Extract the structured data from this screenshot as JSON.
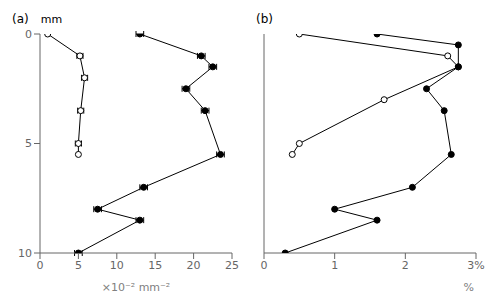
{
  "chart_data": [
    {
      "type": "line",
      "title": "(a)",
      "ylabel": "mm",
      "xlabel": "×10⁻² mm⁻²",
      "xlim": [
        0,
        25
      ],
      "xticks": [
        0,
        5,
        10,
        15,
        20,
        25
      ],
      "ylim": [
        10,
        0
      ],
      "yticks": [
        0,
        5,
        10
      ],
      "grid": false,
      "series": [
        {
          "marker": "circle_open",
          "color": "#000000",
          "line_style": "solid",
          "x": [
            1.0,
            5.2,
            5.8,
            5.3,
            5.0,
            5.0
          ],
          "y": [
            0.0,
            1.0,
            2.0,
            3.5,
            5.0,
            5.5
          ],
          "xerr": [
            0.0,
            0.4,
            0.4,
            0.4,
            0.4,
            0.0
          ]
        },
        {
          "marker": "circle",
          "color": "#000000",
          "line_style": "solid",
          "x": [
            13.0,
            21.0,
            22.5,
            19.0,
            21.5,
            23.5,
            13.5,
            7.5,
            13.0,
            5.0
          ],
          "y": [
            0.0,
            1.0,
            1.5,
            2.5,
            3.5,
            5.5,
            7.0,
            8.0,
            8.5,
            10.0
          ],
          "xerr": [
            0.5,
            0.5,
            0.5,
            0.5,
            0.5,
            0.5,
            0.5,
            0.5,
            0.5,
            0.5
          ]
        }
      ]
    },
    {
      "type": "line",
      "title": "(b)",
      "xlabel": "%",
      "xlim": [
        0,
        3
      ],
      "xticks": [
        0,
        1,
        2,
        {
          "value": 3,
          "label": "3%"
        }
      ],
      "ylim": [
        10,
        0
      ],
      "yticks": [
        0,
        5,
        10
      ],
      "grid": false,
      "tick_labels": "x",
      "series": [
        {
          "marker": "circle_open",
          "color": "#000000",
          "line_style": "solid",
          "x": [
            0.5,
            2.6,
            2.75,
            1.7,
            0.5,
            0.4
          ],
          "y": [
            0.0,
            1.0,
            1.5,
            3.0,
            5.0,
            5.5
          ]
        },
        {
          "marker": "circle",
          "color": "#000000",
          "line_style": "solid",
          "x": [
            1.6,
            2.75,
            2.75,
            2.3,
            2.55,
            2.65,
            2.1,
            1.0,
            1.6,
            0.3
          ],
          "y": [
            0.0,
            0.5,
            1.5,
            2.5,
            3.5,
            5.5,
            7.0,
            8.0,
            8.5,
            10.0
          ]
        }
      ]
    }
  ]
}
